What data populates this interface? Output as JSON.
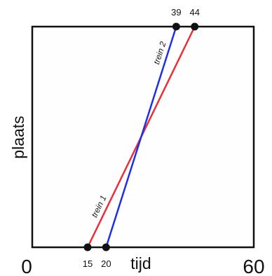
{
  "chart_data": {
    "type": "line",
    "xlabel": "tijd",
    "ylabel": "plaats",
    "xlim": [
      0,
      60
    ],
    "ylim": [
      0,
      1
    ],
    "x_tick_labels": [
      "0",
      "60"
    ],
    "grid": false,
    "series": [
      {
        "name": "trein 1",
        "color": "#e8303a",
        "x": [
          15,
          44
        ],
        "y": [
          0,
          1
        ]
      },
      {
        "name": "trein 2",
        "color": "#1f2fe6",
        "x": [
          20,
          39
        ],
        "y": [
          0,
          1
        ]
      }
    ],
    "marked_points": [
      {
        "x": 15,
        "y": 0,
        "label": "15"
      },
      {
        "x": 20,
        "y": 0,
        "label": "20"
      },
      {
        "x": 39,
        "y": 1,
        "label": "39"
      },
      {
        "x": 44,
        "y": 1,
        "label": "44"
      }
    ]
  }
}
